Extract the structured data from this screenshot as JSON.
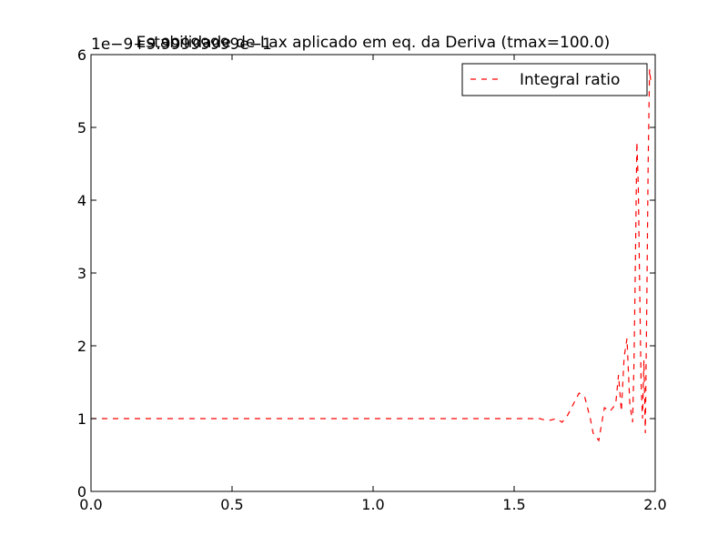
{
  "chart_data": {
    "type": "line",
    "title": "Estabilidade de Lax aplicado em eq. da Deriva (tmax=100.0)",
    "offset_text": "1e−9+9.99999999e−1",
    "xlim": [
      0.0,
      2.0
    ],
    "ylim": [
      0,
      6
    ],
    "xticks": [
      0.0,
      0.5,
      1.0,
      1.5,
      2.0
    ],
    "xtick_labels": [
      "0.0",
      "0.5",
      "1.0",
      "1.5",
      "2.0"
    ],
    "yticks": [
      0,
      1,
      2,
      3,
      4,
      5,
      6
    ],
    "ytick_labels": [
      "0",
      "1",
      "2",
      "3",
      "4",
      "5",
      "6"
    ],
    "grid": false,
    "legend_position": "top-right",
    "series": [
      {
        "name": "Integral ratio",
        "color": "#ff0000",
        "line_style": "dashed",
        "x": [
          0.0,
          0.1,
          0.2,
          0.3,
          0.4,
          0.5,
          0.6,
          0.7,
          0.8,
          0.9,
          1.0,
          1.1,
          1.2,
          1.3,
          1.4,
          1.5,
          1.56,
          1.59,
          1.61,
          1.63,
          1.65,
          1.67,
          1.69,
          1.71,
          1.73,
          1.75,
          1.77,
          1.78,
          1.8,
          1.82,
          1.84,
          1.85,
          1.86,
          1.87,
          1.88,
          1.89,
          1.9,
          1.91,
          1.92,
          1.925,
          1.93,
          1.935,
          1.94,
          1.945,
          1.95,
          1.955,
          1.96,
          1.965,
          1.97,
          1.975,
          1.98,
          1.985
        ],
        "y": [
          1.0,
          1.0,
          1.0,
          1.0,
          1.0,
          1.0,
          1.0,
          1.0,
          1.0,
          1.0,
          1.0,
          1.0,
          1.0,
          1.0,
          1.0,
          1.0,
          1.0,
          1.0,
          0.98,
          0.98,
          1.0,
          0.95,
          1.05,
          1.2,
          1.35,
          1.3,
          1.0,
          0.8,
          0.7,
          1.15,
          1.1,
          1.15,
          1.2,
          1.6,
          1.1,
          1.85,
          2.1,
          1.2,
          0.95,
          1.8,
          3.2,
          4.8,
          4.2,
          2.8,
          1.5,
          1.0,
          1.8,
          0.8,
          2.5,
          4.5,
          5.8,
          5.6
        ]
      }
    ]
  }
}
